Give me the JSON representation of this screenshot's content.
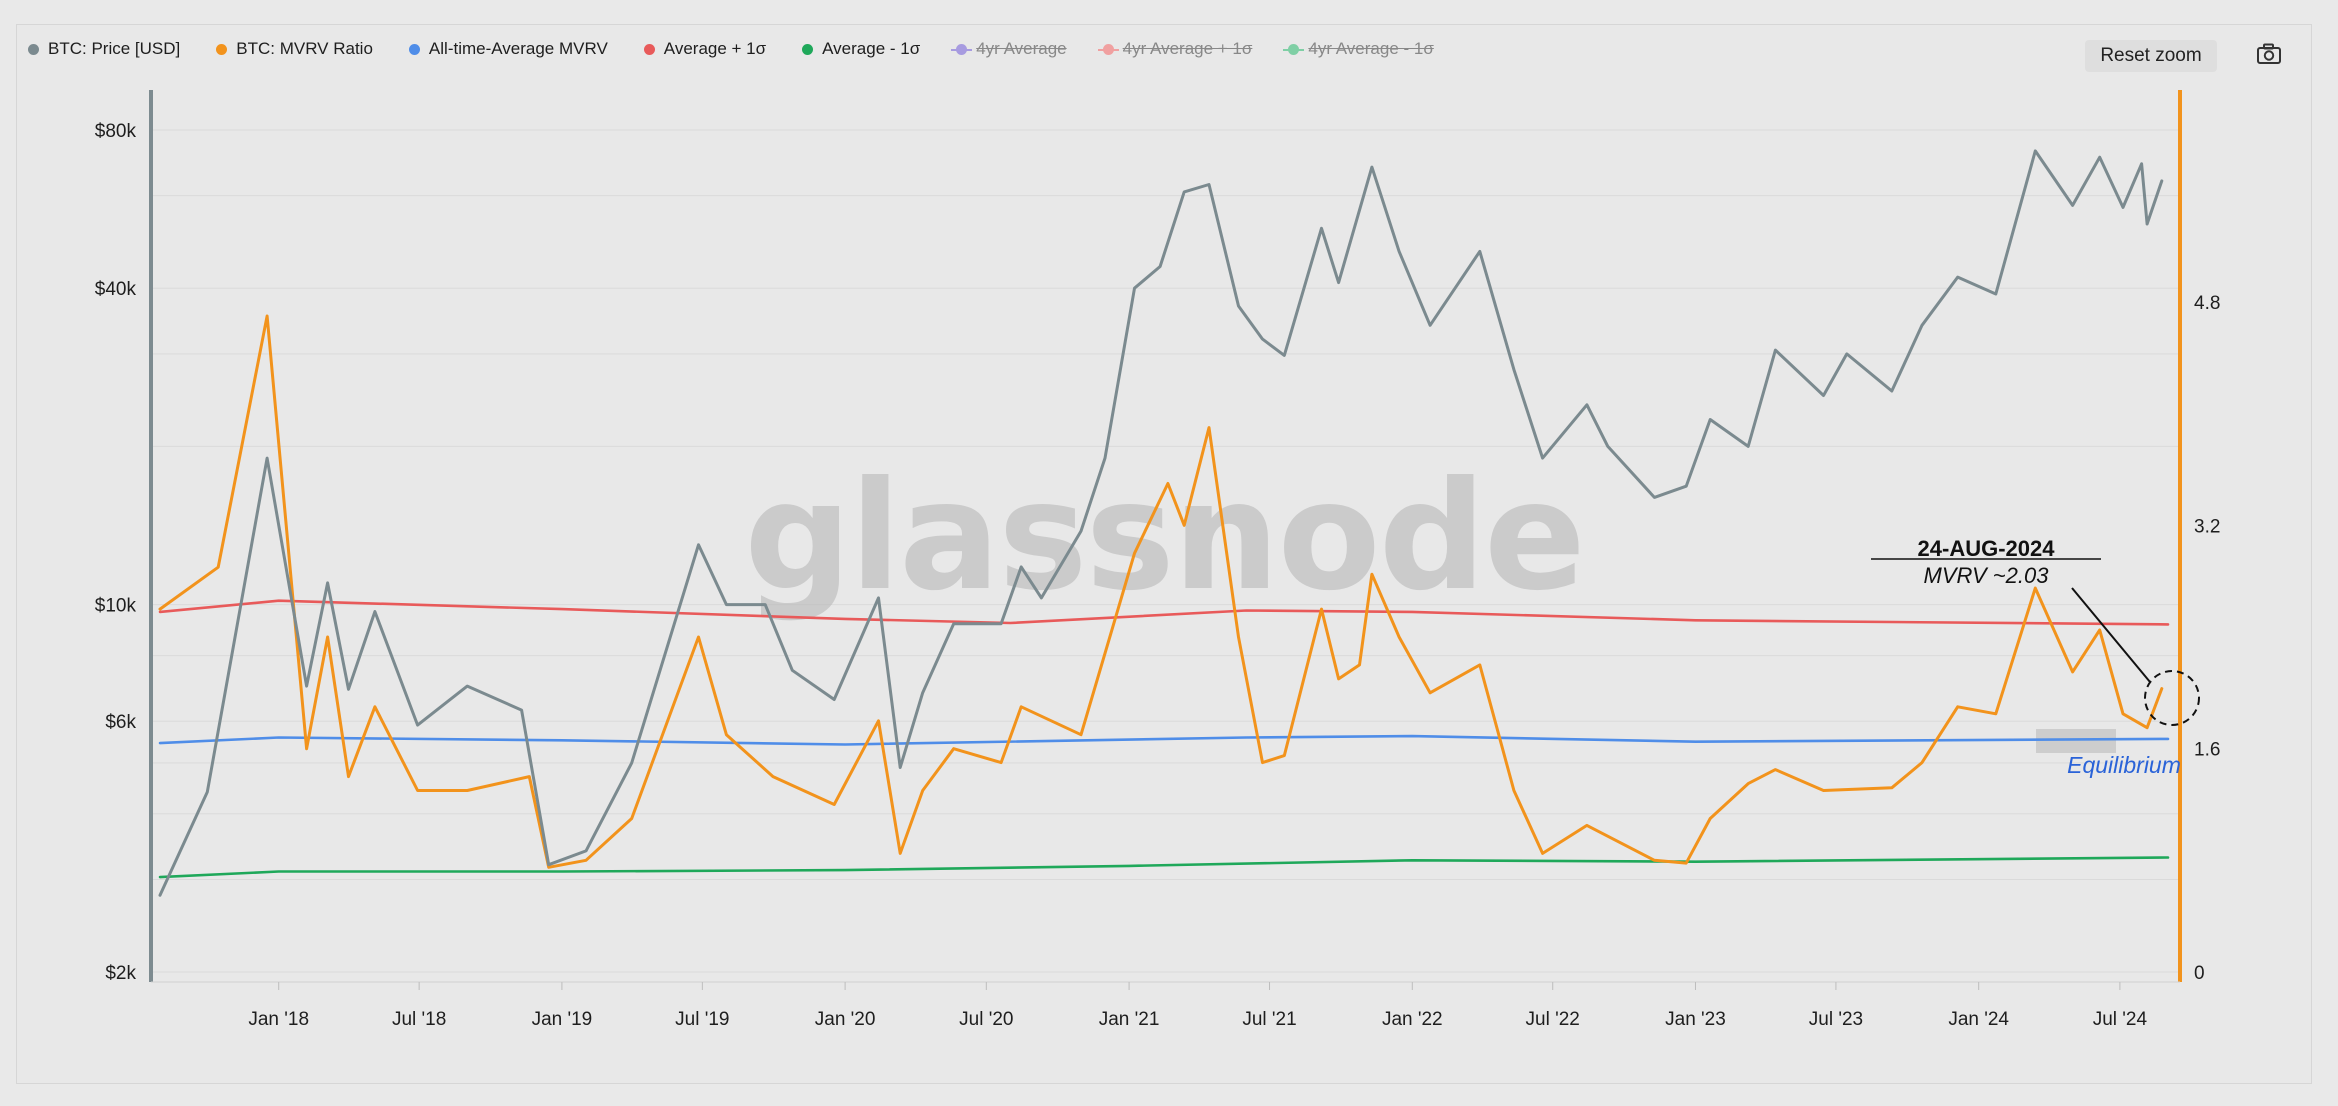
{
  "legend": [
    {
      "label": "BTC: Price [USD]",
      "color": "#7b8a8f",
      "enabled": true
    },
    {
      "label": "BTC: MVRV Ratio",
      "color": "#f2931c",
      "enabled": true
    },
    {
      "label": "All-time-Average MVRV",
      "color": "#4f8de8",
      "enabled": true
    },
    {
      "label": "Average + 1σ",
      "color": "#e85a5a",
      "enabled": true
    },
    {
      "label": "Average - 1σ",
      "color": "#1fa85a",
      "enabled": true
    },
    {
      "label": "4yr Average",
      "color": "#a79be0",
      "enabled": false
    },
    {
      "label": "4yr Average + 1σ",
      "color": "#f0a0a0",
      "enabled": false
    },
    {
      "label": "4yr Average - 1σ",
      "color": "#7fcfa5",
      "enabled": false
    }
  ],
  "toolbar": {
    "reset_zoom_label": "Reset zoom",
    "camera_icon": "camera-icon"
  },
  "watermark": "glassnode",
  "annotation": {
    "date": "24-AUG-2024",
    "text": "MVRV ~2.03",
    "equilibrium": "Equilibrium",
    "equilibrium_color": "#2a63d8"
  },
  "chart_data": {
    "type": "line",
    "x_ticks": [
      "Jan '18",
      "Jul '18",
      "Jan '19",
      "Jul '19",
      "Jan '20",
      "Jul '20",
      "Jan '21",
      "Jul '21",
      "Jan '22",
      "Jul '22",
      "Jan '23",
      "Jul '23",
      "Jan '24",
      "Jul '24"
    ],
    "y_left": {
      "scale": "log",
      "ticks": [
        "$80k",
        "$40k",
        "$10k",
        "$6k",
        "$2k"
      ],
      "tick_values": [
        80000,
        40000,
        10000,
        6000,
        2000
      ]
    },
    "y_right": {
      "scale": "linear",
      "ticks": [
        "4.8",
        "3.2",
        "1.6",
        "0"
      ],
      "tick_values": [
        4.8,
        3.2,
        1.6,
        0
      ],
      "range": [
        0,
        6.4
      ]
    },
    "grid": true,
    "legend_position": "top-left",
    "series": [
      {
        "name": "BTC: Price [USD]",
        "axis": "left",
        "color": "#7b8a8f",
        "x": [
          "2017-08-01",
          "2017-10-01",
          "2017-12-17",
          "2018-02-06",
          "2018-03-05",
          "2018-04-01",
          "2018-05-05",
          "2018-06-29",
          "2018-09-01",
          "2018-11-10",
          "2018-12-15",
          "2019-02-01",
          "2019-04-01",
          "2019-06-26",
          "2019-08-01",
          "2019-09-20",
          "2019-10-25",
          "2019-12-18",
          "2020-02-13",
          "2020-03-12",
          "2020-04-10",
          "2020-05-20",
          "2020-07-20",
          "2020-08-15",
          "2020-09-10",
          "2020-10-31",
          "2020-12-01",
          "2021-01-08",
          "2021-02-10",
          "2021-03-13",
          "2021-04-14",
          "2021-05-22",
          "2021-06-22",
          "2021-07-20",
          "2021-09-06",
          "2021-09-28",
          "2021-11-10",
          "2021-12-15",
          "2022-01-24",
          "2022-03-29",
          "2022-05-12",
          "2022-06-18",
          "2022-08-14",
          "2022-09-10",
          "2022-11-09",
          "2022-12-20",
          "2023-01-20",
          "2023-03-10",
          "2023-04-14",
          "2023-06-15",
          "2023-07-15",
          "2023-09-11",
          "2023-10-20",
          "2023-12-05",
          "2024-01-23",
          "2024-03-14",
          "2024-05-01",
          "2024-06-05",
          "2024-07-05",
          "2024-07-29",
          "2024-08-05",
          "2024-08-24"
        ],
        "values": [
          2800,
          4400,
          19000,
          7000,
          11000,
          6900,
          9700,
          5900,
          7000,
          6300,
          3200,
          3400,
          5000,
          13000,
          10000,
          10000,
          7500,
          6600,
          10300,
          4900,
          6800,
          9200,
          9200,
          11800,
          10300,
          13800,
          19000,
          40000,
          44000,
          61000,
          63000,
          37000,
          32000,
          29800,
          52000,
          41000,
          68000,
          47000,
          34000,
          47000,
          28000,
          19000,
          24000,
          20000,
          16000,
          16800,
          22500,
          20000,
          30500,
          25000,
          30000,
          25500,
          34000,
          42000,
          39000,
          73000,
          57500,
          71000,
          57000,
          69000,
          53000,
          64000
        ]
      },
      {
        "name": "BTC: MVRV Ratio",
        "axis": "right",
        "color": "#f2931c",
        "x": [
          "2017-08-01",
          "2017-10-15",
          "2017-12-17",
          "2018-02-06",
          "2018-03-05",
          "2018-04-01",
          "2018-05-05",
          "2018-06-29",
          "2018-09-01",
          "2018-11-20",
          "2018-12-15",
          "2019-02-01",
          "2019-04-01",
          "2019-06-26",
          "2019-08-01",
          "2019-09-30",
          "2019-12-18",
          "2020-02-13",
          "2020-03-12",
          "2020-04-10",
          "2020-05-20",
          "2020-07-20",
          "2020-08-15",
          "2020-10-31",
          "2021-01-08",
          "2021-02-20",
          "2021-03-13",
          "2021-04-14",
          "2021-05-22",
          "2021-06-22",
          "2021-07-20",
          "2021-09-06",
          "2021-09-28",
          "2021-10-25",
          "2021-11-10",
          "2021-12-15",
          "2022-01-24",
          "2022-03-29",
          "2022-05-12",
          "2022-06-18",
          "2022-08-14",
          "2022-11-09",
          "2022-12-20",
          "2023-01-20",
          "2023-03-10",
          "2023-04-14",
          "2023-06-15",
          "2023-09-11",
          "2023-10-20",
          "2023-12-05",
          "2024-01-23",
          "2024-03-14",
          "2024-05-01",
          "2024-06-05",
          "2024-07-05",
          "2024-08-05",
          "2024-08-24"
        ],
        "values": [
          2.6,
          2.9,
          4.7,
          1.6,
          2.4,
          1.4,
          1.9,
          1.3,
          1.3,
          1.4,
          0.75,
          0.8,
          1.1,
          2.4,
          1.7,
          1.4,
          1.2,
          1.8,
          0.85,
          1.3,
          1.6,
          1.5,
          1.9,
          1.7,
          3.0,
          3.5,
          3.2,
          3.9,
          2.4,
          1.5,
          1.55,
          2.6,
          2.1,
          2.2,
          2.85,
          2.4,
          2.0,
          2.2,
          1.3,
          0.85,
          1.05,
          0.8,
          0.78,
          1.1,
          1.35,
          1.45,
          1.3,
          1.32,
          1.5,
          1.9,
          1.85,
          2.75,
          2.15,
          2.45,
          1.85,
          1.75,
          2.03
        ]
      },
      {
        "name": "All-time-Average MVRV",
        "axis": "right",
        "color": "#4f8de8",
        "x": [
          "2017-08-01",
          "2018-01-01",
          "2019-01-01",
          "2020-01-01",
          "2021-06-01",
          "2022-01-01",
          "2023-01-01",
          "2024-09-01"
        ],
        "values": [
          1.64,
          1.68,
          1.66,
          1.63,
          1.68,
          1.69,
          1.65,
          1.67
        ]
      },
      {
        "name": "Average + 1σ",
        "axis": "right",
        "color": "#e85a5a",
        "x": [
          "2017-08-01",
          "2018-01-01",
          "2019-01-01",
          "2020-01-01",
          "2020-08-01",
          "2021-06-01",
          "2022-01-01",
          "2023-01-01",
          "2024-09-01"
        ],
        "values": [
          2.58,
          2.66,
          2.6,
          2.53,
          2.5,
          2.59,
          2.58,
          2.52,
          2.49
        ]
      },
      {
        "name": "Average - 1σ",
        "axis": "right",
        "color": "#1fa85a",
        "x": [
          "2017-08-01",
          "2018-01-01",
          "2019-01-01",
          "2020-01-01",
          "2021-01-01",
          "2022-01-01",
          "2023-01-01",
          "2024-09-01"
        ],
        "values": [
          0.68,
          0.72,
          0.72,
          0.73,
          0.76,
          0.8,
          0.79,
          0.82
        ]
      }
    ]
  }
}
